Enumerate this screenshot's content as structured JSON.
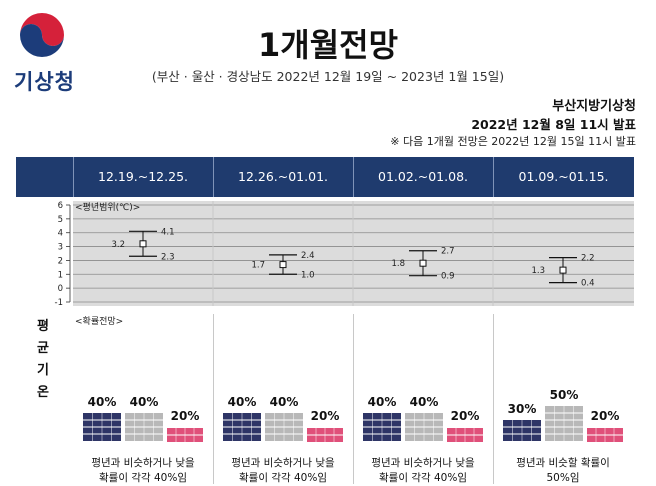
{
  "logo": {
    "text": "기상청"
  },
  "title": "1개월전망",
  "subtitle": "(부산 · 울산 · 경상남도 2022년 12월 19일 ~ 2023년 1월 15일)",
  "agency": "부산지방기상청",
  "issued": "2022년 12월 8일 11시 발표",
  "next_notice": "※ 다음 1개월 전망은 2022년 12월 15일 11시 발표",
  "side_label": [
    "평",
    "균",
    "기",
    "온"
  ],
  "range_label": "<평년범위(℃)>",
  "prob_label": "<확률전망>",
  "colors": {
    "header": "#1f3b6e",
    "below": "#2e3566",
    "normal": "#b8b8b8",
    "above": "#e0507a",
    "grid_bg": "#dcdcdc"
  },
  "chart_data": {
    "type": "errorbar",
    "ylim": [
      -1,
      6
    ],
    "yticks": [
      "6",
      "5",
      "4",
      "3",
      "2",
      "1",
      "0",
      "-1"
    ],
    "periods": [
      {
        "label": "12.19.~12.25.",
        "mean": "3.2",
        "high": "4.1",
        "low": "2.3",
        "below": "40%",
        "normal": "40%",
        "above": "20%",
        "desc1": "평년과 비슷하거나 낮을",
        "desc2": "확률이 각각 40%임"
      },
      {
        "label": "12.26.~01.01.",
        "mean": "1.7",
        "high": "2.4",
        "low": "1.0",
        "below": "40%",
        "normal": "40%",
        "above": "20%",
        "desc1": "평년과 비슷하거나 낮을",
        "desc2": "확률이 각각 40%임"
      },
      {
        "label": "01.02.~01.08.",
        "mean": "1.8",
        "high": "2.7",
        "low": "0.9",
        "below": "40%",
        "normal": "40%",
        "above": "20%",
        "desc1": "평년과 비슷하거나 낮을",
        "desc2": "확률이 각각 40%임"
      },
      {
        "label": "01.09.~01.15.",
        "mean": "1.3",
        "high": "2.2",
        "low": "0.4",
        "below": "30%",
        "normal": "50%",
        "above": "20%",
        "desc1": "평년과 비슷할 확률이",
        "desc2": "50%임"
      }
    ]
  }
}
